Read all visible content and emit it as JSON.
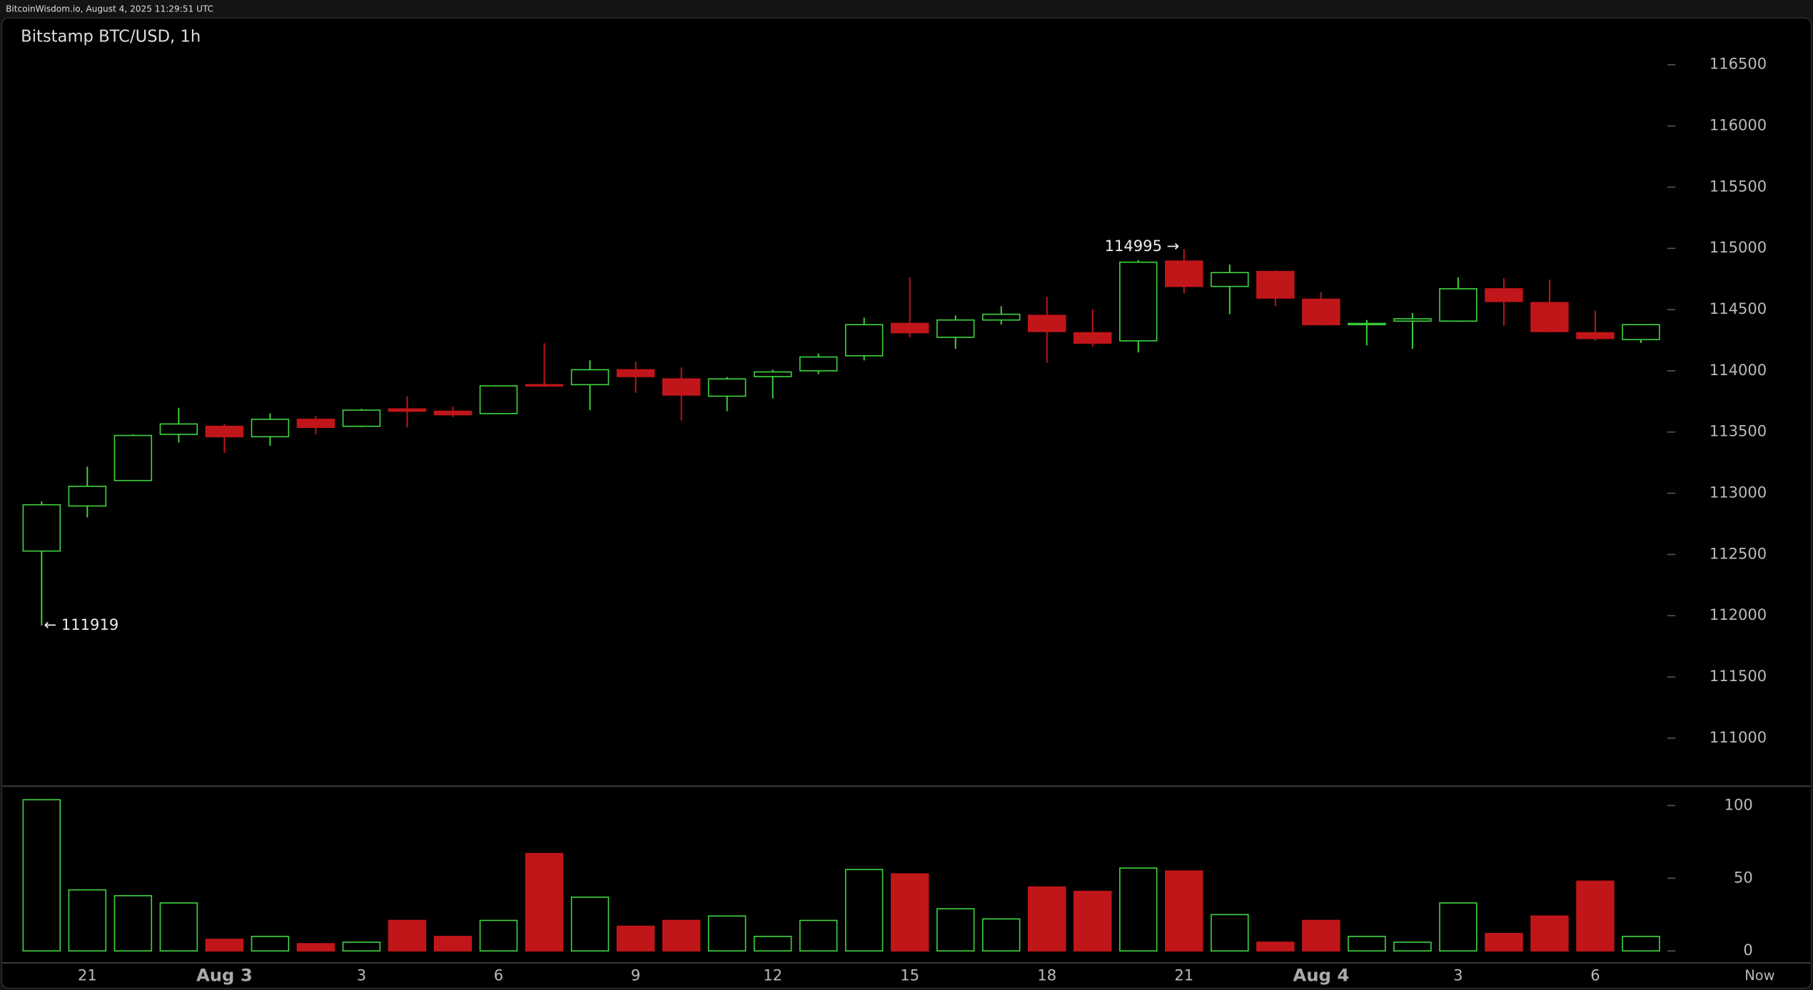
{
  "header": "BitcoinWisdom.io, August 4, 2025 11:29:51 UTC",
  "chart_data": {
    "type": "candlestick",
    "title": "Bitstamp BTC/USD, 1h",
    "categories": [
      null,
      "21",
      null,
      null,
      "Aug 3",
      null,
      null,
      "3",
      null,
      null,
      "6",
      null,
      null,
      "9",
      null,
      null,
      "12",
      null,
      null,
      "15",
      null,
      null,
      "18",
      null,
      null,
      "21",
      null,
      null,
      "Aug 4",
      null,
      null,
      "3",
      null,
      null,
      "6",
      null
    ],
    "now_label": "Now",
    "open": [
      112528,
      112896,
      113104,
      113481,
      113547,
      113462,
      113604,
      113547,
      113689,
      113670,
      113651,
      113887,
      113887,
      114009,
      113934,
      113793,
      113953,
      114000,
      114123,
      114387,
      114274,
      114415,
      114453,
      114311,
      114245,
      114896,
      114689,
      114811,
      114585,
      114377,
      114406,
      114406,
      114670,
      114557,
      114311,
      114255
    ],
    "high": [
      112934,
      113217,
      113480,
      113698,
      113566,
      113651,
      113632,
      113690,
      113792,
      113708,
      113880,
      114226,
      114085,
      114075,
      114028,
      113950,
      114009,
      114142,
      114434,
      114764,
      114453,
      114528,
      114604,
      114500,
      114905,
      114995,
      114868,
      114820,
      114642,
      114415,
      114472,
      114764,
      114755,
      114745,
      114491,
      114380
    ],
    "low": [
      111919,
      112802,
      113100,
      113415,
      113330,
      113387,
      113481,
      113540,
      113538,
      113623,
      113645,
      113868,
      113679,
      113821,
      113594,
      113670,
      113774,
      113972,
      114085,
      114274,
      114179,
      114377,
      114066,
      114198,
      114151,
      114632,
      114462,
      114528,
      114370,
      114208,
      114179,
      114400,
      114368,
      114315,
      114245,
      114227
    ],
    "close": [
      112906,
      113057,
      113472,
      113566,
      113462,
      113604,
      113538,
      113679,
      113670,
      113641,
      113877,
      113877,
      114009,
      113953,
      113802,
      113934,
      113991,
      114113,
      114377,
      114311,
      114415,
      114462,
      114321,
      114226,
      114887,
      114689,
      114802,
      114594,
      114377,
      114387,
      114425,
      114670,
      114566,
      114321,
      114264,
      114377
    ],
    "volume": [
      104,
      42,
      38,
      33,
      8,
      10,
      5,
      6,
      21,
      10,
      21,
      67,
      37,
      17,
      21,
      24,
      10,
      21,
      56,
      53,
      29,
      22,
      44,
      41,
      57,
      55,
      25,
      6,
      21,
      10,
      6,
      33,
      12,
      24,
      48,
      10
    ],
    "ylim": [
      110613,
      116887
    ],
    "yticks": [
      111000,
      111500,
      112000,
      112500,
      113000,
      113500,
      114000,
      114500,
      115000,
      115500,
      116000,
      116500
    ],
    "volume_ylim": [
      -7,
      109
    ],
    "volume_ticks": [
      0,
      50,
      100
    ],
    "max_label": {
      "value": 114995,
      "label": "114995 →"
    },
    "min_label": {
      "value": 111919,
      "label": "← 111919"
    },
    "up_color": "#3fd43f",
    "down_color": "#c0161a"
  }
}
